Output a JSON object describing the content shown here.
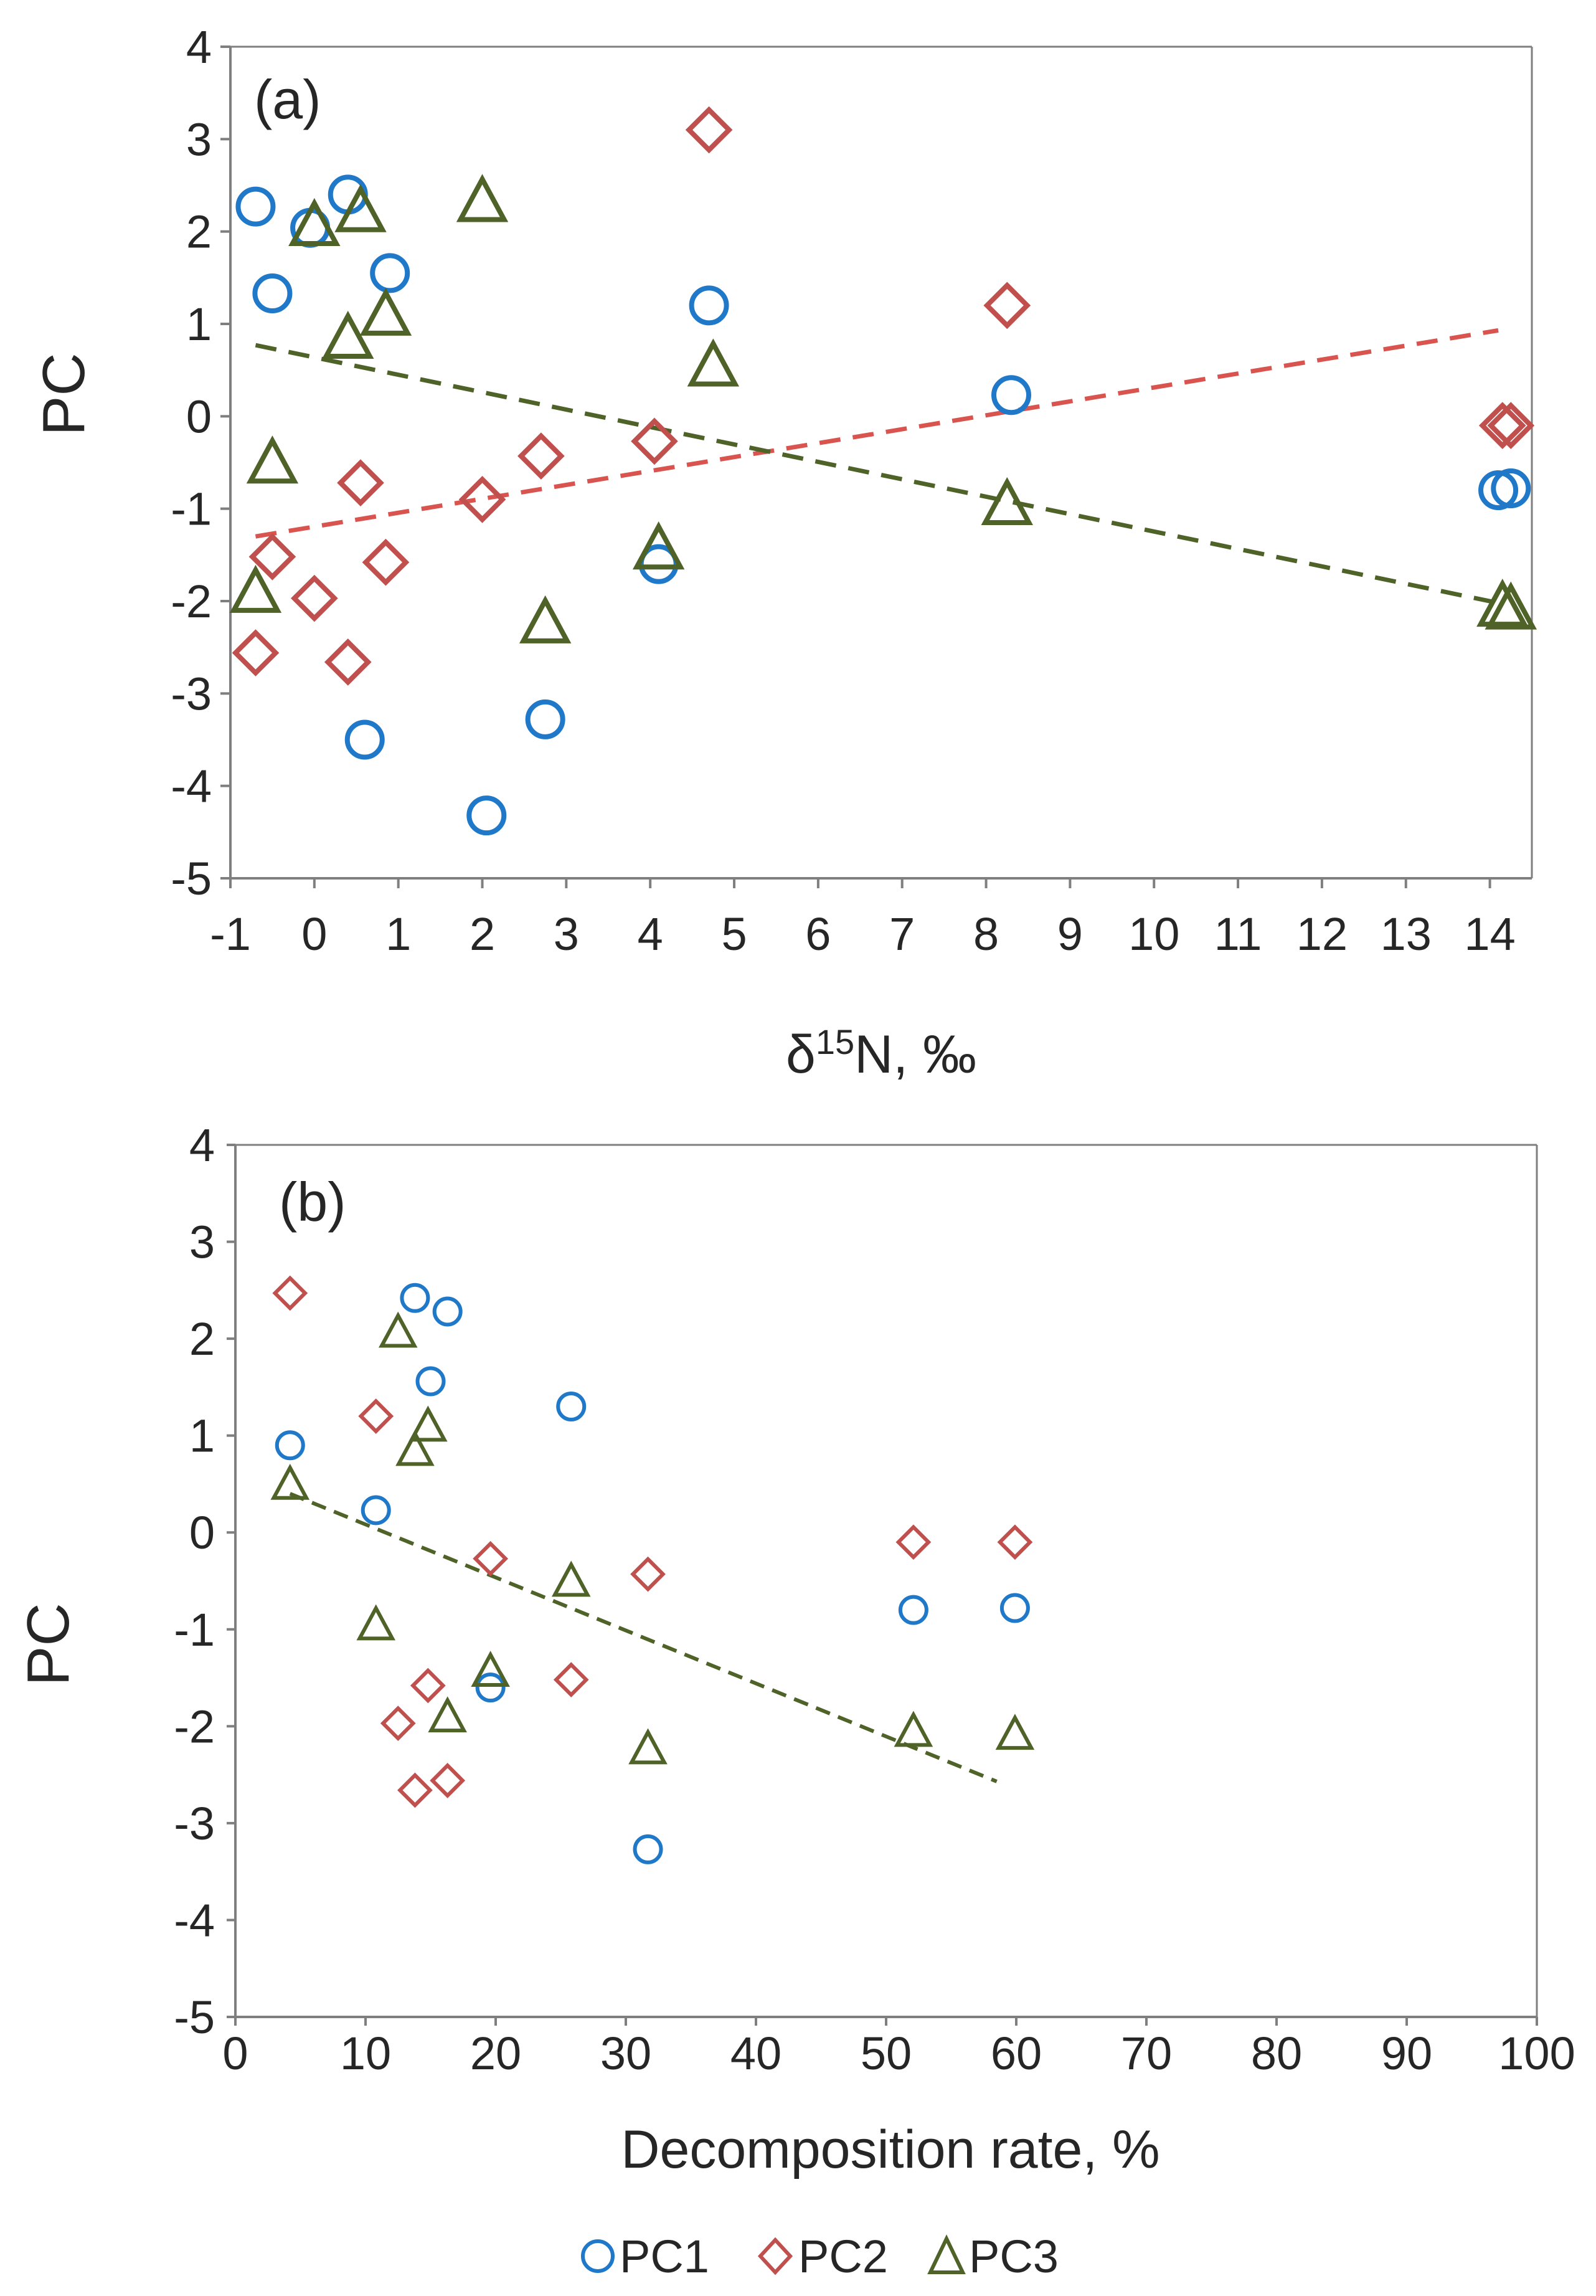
{
  "chart_data": [
    {
      "type": "scatter",
      "panel_label": "(a)",
      "xlabel_prefix": "δ",
      "xlabel_sup": "15",
      "xlabel_suffix": "N, ‰",
      "xlabel": "δ15N, ‰",
      "ylabel": "PC",
      "xlim": [
        -1,
        14.5
      ],
      "ylim": [
        -5,
        4
      ],
      "xtick_positions": [
        -1,
        0,
        1,
        2,
        3,
        4,
        5,
        6,
        7,
        8,
        9,
        10,
        11,
        12,
        13,
        14
      ],
      "xtick_labels": [
        "-1",
        "0",
        "1",
        "2",
        "3",
        "4",
        "5",
        "6",
        "7",
        "8",
        "9",
        "10",
        "11",
        "12",
        "13",
        "14"
      ],
      "ytick_positions": [
        -5,
        -4,
        -3,
        -2,
        -1,
        0,
        1,
        2,
        3,
        4
      ],
      "ytick_labels": [
        "-5",
        "-4",
        "-3",
        "-2",
        "-1",
        "0",
        "1",
        "2",
        "3",
        "4"
      ],
      "series": [
        {
          "name": "PC1",
          "marker": "circle",
          "x": [
            -0.7,
            -0.5,
            0.4,
            0.9,
            4.7,
            8.3,
            14.1,
            14.25,
            -0.05,
            0.6,
            2.05,
            2.75,
            4.1
          ],
          "y": [
            2.27,
            1.33,
            2.4,
            1.55,
            1.2,
            0.23,
            -0.8,
            -0.78,
            2.04,
            -3.5,
            -4.32,
            -3.28,
            -1.6
          ]
        },
        {
          "name": "PC2",
          "marker": "diamond",
          "x": [
            -0.7,
            -0.5,
            0.0,
            0.4,
            0.55,
            0.85,
            2.0,
            2.7,
            4.05,
            4.7,
            8.25,
            14.15,
            14.25
          ],
          "y": [
            -2.56,
            -1.52,
            -1.97,
            -2.66,
            -0.72,
            -1.58,
            -0.9,
            -0.43,
            -0.27,
            3.1,
            1.2,
            -0.1,
            -0.1
          ]
        },
        {
          "name": "PC3",
          "marker": "triangle",
          "x": [
            -0.7,
            -0.5,
            0.0,
            0.4,
            0.55,
            0.85,
            2.0,
            2.75,
            4.1,
            4.75,
            8.25,
            14.15,
            14.25
          ],
          "y": [
            -1.9,
            -0.5,
            2.07,
            0.85,
            2.22,
            1.1,
            2.33,
            -2.23,
            -1.43,
            0.55,
            -0.95,
            -2.05,
            -2.08
          ]
        }
      ],
      "trendlines": [
        {
          "series": "PC2",
          "x": [
            -0.7,
            14.1
          ],
          "y": [
            -1.3,
            0.93
          ]
        },
        {
          "series": "PC3",
          "x": [
            -0.7,
            14.1
          ],
          "y": [
            0.77,
            -2.02
          ]
        }
      ]
    },
    {
      "type": "scatter",
      "panel_label": "(b)",
      "xlabel": "Decomposition rate, %",
      "ylabel": "PC",
      "xlim": [
        0,
        100
      ],
      "ylim": [
        -5,
        4
      ],
      "xtick_positions": [
        0,
        10,
        20,
        30,
        40,
        50,
        60,
        70,
        80,
        90,
        100
      ],
      "xtick_labels": [
        "0",
        "10",
        "20",
        "30",
        "40",
        "50",
        "60",
        "70",
        "80",
        "90",
        "100"
      ],
      "ytick_positions": [
        -5,
        -4,
        -3,
        -2,
        -1,
        0,
        1,
        2,
        3,
        4
      ],
      "ytick_labels": [
        "-5",
        "-4",
        "-3",
        "-2",
        "-1",
        "0",
        "1",
        "2",
        "3",
        "4"
      ],
      "series": [
        {
          "name": "PC1",
          "marker": "circle",
          "x": [
            4.2,
            10.8,
            13.8,
            15,
            16.3,
            19.6,
            25.8,
            31.7,
            52.1,
            59.9
          ],
          "y": [
            0.9,
            0.23,
            2.42,
            1.56,
            2.28,
            -1.6,
            1.3,
            -3.27,
            -0.8,
            -0.78
          ]
        },
        {
          "name": "PC2",
          "marker": "diamond",
          "x": [
            4.2,
            10.8,
            12.5,
            13.8,
            14.8,
            16.3,
            19.6,
            25.8,
            31.7,
            52.1,
            59.9
          ],
          "y": [
            2.47,
            1.2,
            -1.97,
            -2.66,
            -1.58,
            -2.56,
            -0.27,
            -1.52,
            -0.43,
            -0.1,
            -0.1
          ]
        },
        {
          "name": "PC3",
          "marker": "triangle",
          "x": [
            4.2,
            10.8,
            12.5,
            13.8,
            14.8,
            16.3,
            19.6,
            25.8,
            31.7,
            52.1,
            59.9
          ],
          "y": [
            0.5,
            -0.95,
            2.07,
            0.85,
            1.1,
            -1.9,
            -1.43,
            -0.5,
            -2.23,
            -2.05,
            -2.08
          ]
        }
      ],
      "trendlines": [
        {
          "series": "PC3",
          "x": [
            4.2,
            58.5
          ],
          "y": [
            0.4,
            -2.57
          ]
        }
      ]
    }
  ],
  "legend": {
    "placement": "bottom-center",
    "items": [
      "PC1",
      "PC2",
      "PC3"
    ]
  },
  "colors": {
    "PC1": "#1f78c8",
    "PC2": "#c0504d",
    "PC3": "#4f6228",
    "trend_PC2": "#d9534f",
    "trend_PC3": "#4f6228",
    "axis": "#7f7f7f",
    "text": "#262626"
  }
}
